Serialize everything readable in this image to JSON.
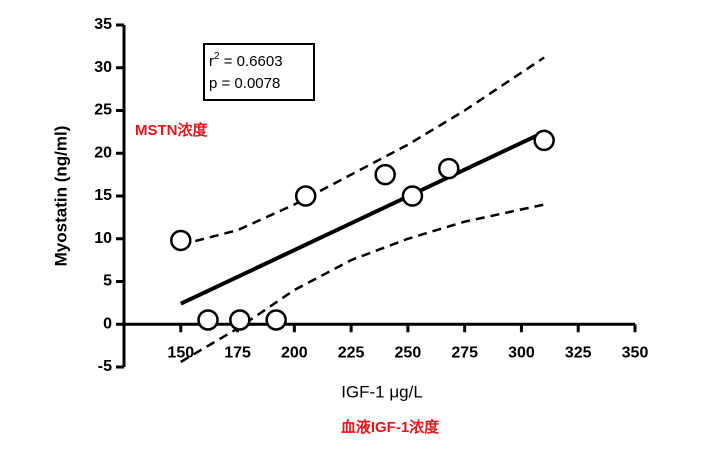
{
  "chart_data": {
    "type": "scatter",
    "y_label": "Myostatin (ng/ml)",
    "x_label": "IGF-1 μg/L",
    "annotation": {
      "r_squared": {
        "base": "r",
        "sup": "2",
        "rest": " = 0.6603"
      },
      "p": "p = 0.0078"
    },
    "y_caption": "MSTN浓度",
    "x_caption": "血液IGF-1浓度",
    "caption_color": "#e8141c",
    "color": "#000000",
    "points": {
      "x": [
        150,
        162,
        176,
        192,
        205,
        240,
        252,
        268,
        310
      ],
      "y": [
        9.8,
        0.5,
        0.5,
        0.5,
        15,
        17.5,
        15,
        18.2,
        21.5
      ]
    },
    "fit": {
      "x": [
        150,
        311
      ],
      "y": [
        2.4,
        22.6
      ]
    },
    "confidence_band": {
      "x": [
        150,
        175,
        200,
        225,
        250,
        275,
        310
      ],
      "upper": [
        9.3,
        11,
        14,
        17.5,
        21,
        25,
        31.2
      ],
      "lower": [
        -4.4,
        -0.5,
        4,
        7.5,
        10,
        12,
        14
      ]
    },
    "xlim": [
      125,
      350
    ],
    "ylim": [
      -5,
      35
    ],
    "xticks": [
      150,
      175,
      200,
      225,
      250,
      275,
      300,
      325,
      350
    ],
    "yticks": [
      -5,
      0,
      5,
      10,
      15,
      20,
      25,
      30,
      35
    ],
    "grid": false
  }
}
